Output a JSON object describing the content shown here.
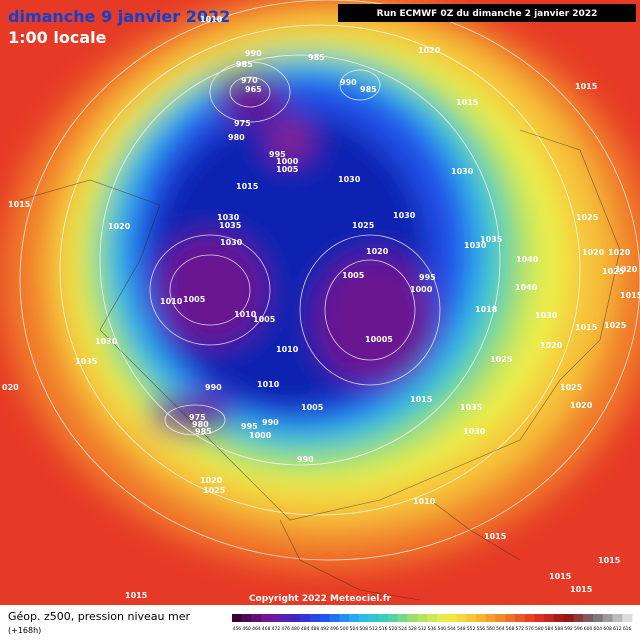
{
  "header": {
    "title": "dimanche 9 janvier 2022",
    "subtitle": "1:00 locale",
    "run": "Run ECMWF 0Z du dimanche 2 janvier 2022"
  },
  "isobar_labels": [
    "1010",
    "990",
    "985",
    "970",
    "965",
    "985",
    "990",
    "985",
    "1020",
    "1015",
    "1015",
    "975",
    "980",
    "995",
    "1000",
    "1005",
    "1030",
    "1030",
    "1015",
    "1015",
    "1030",
    "1035",
    "1020",
    "1025",
    "1030",
    "1025",
    "1030",
    "1035",
    "1030",
    "1020",
    "1020",
    "1020",
    "1040",
    "1025",
    "1020",
    "1015",
    "1005",
    "995",
    "1010",
    "1005",
    "1000",
    "1010",
    "1005",
    "1040",
    "1018",
    "1030",
    "1015",
    "1025",
    "1030",
    "10005",
    "1010",
    "1020",
    "1035",
    "1025",
    "990",
    "1010",
    "1015",
    "1025",
    "020",
    "975",
    "980",
    "985",
    "995",
    "990",
    "1005",
    "1035",
    "1020",
    "1000",
    "1030",
    "990",
    "1020",
    "1025",
    "1010",
    "1015",
    "1015",
    "1015",
    "1015",
    "1015"
  ],
  "footer": {
    "title": "Géop. z500, pression niveau mer",
    "lead": "(+168h)",
    "copyright": "Copyright 2022 Meteociel.fr"
  },
  "colorbar_labels": [
    "456",
    "460",
    "464",
    "468",
    "472",
    "476",
    "480",
    "484",
    "488",
    "492",
    "496",
    "500",
    "504",
    "508",
    "512",
    "516",
    "520",
    "524",
    "528",
    "532",
    "536",
    "540",
    "544",
    "548",
    "552",
    "556",
    "560",
    "564",
    "568",
    "572",
    "576",
    "580",
    "584",
    "588",
    "592",
    "596",
    "600",
    "604",
    "608",
    "612",
    "616"
  ]
}
